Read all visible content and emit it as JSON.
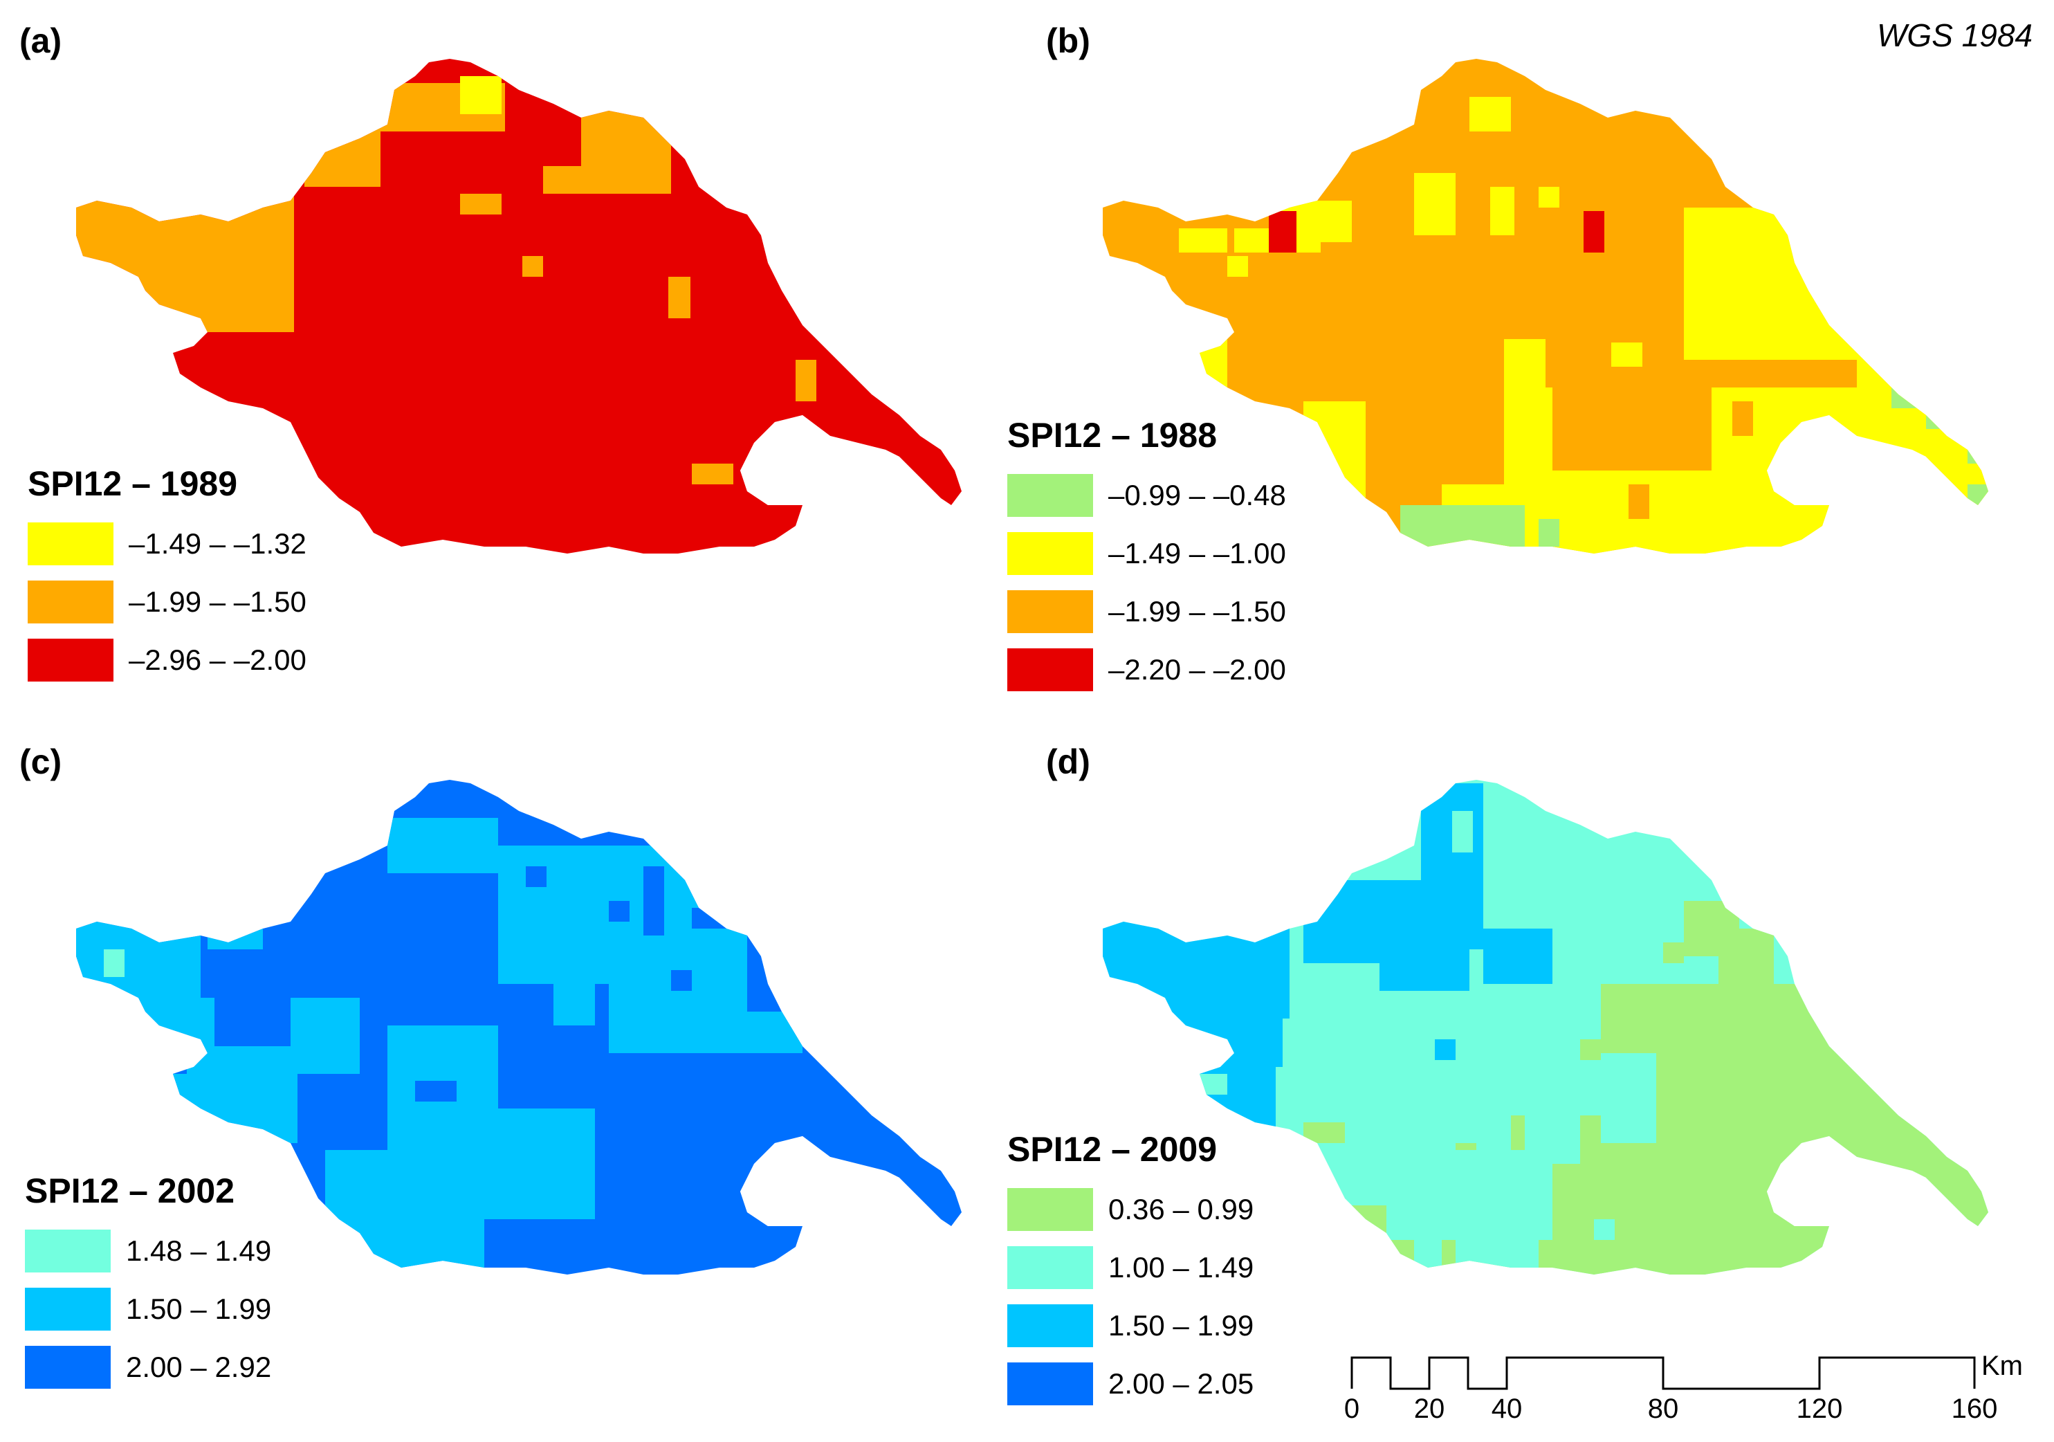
{
  "projection": "WGS 1984",
  "colors": {
    "red": "#e60000",
    "orange": "#ffaa00",
    "yellow": "#ffff00",
    "green": "#a3f27a",
    "aqua": "#73ffdf",
    "sky": "#00c5ff",
    "blue": "#0070ff"
  },
  "panels": [
    {
      "id": "a",
      "label": "(a)",
      "legend_title": "SPI12 – 1989",
      "classes": [
        {
          "label": "–1.49 – –1.32",
          "color": "#ffff00"
        },
        {
          "label": "–1.99 – –1.50",
          "color": "#ffaa00"
        },
        {
          "label": "–2.96 – –2.00",
          "color": "#e60000"
        }
      ],
      "base_color": "#e60000"
    },
    {
      "id": "b",
      "label": "(b)",
      "legend_title": "SPI12 – 1988",
      "classes": [
        {
          "label": "–0.99 – –0.48",
          "color": "#a3f27a"
        },
        {
          "label": "–1.49 – –1.00",
          "color": "#ffff00"
        },
        {
          "label": "–1.99 – –1.50",
          "color": "#ffaa00"
        },
        {
          "label": "–2.20 – –2.00",
          "color": "#e60000"
        }
      ],
      "base_color": "#ffaa00"
    },
    {
      "id": "c",
      "label": "(c)",
      "legend_title": "SPI12 – 2002",
      "classes": [
        {
          "label": "1.48 – 1.49",
          "color": "#73ffdf"
        },
        {
          "label": "1.50 – 1.99",
          "color": "#00c5ff"
        },
        {
          "label": "2.00 – 2.92",
          "color": "#0070ff"
        }
      ],
      "base_color": "#0070ff"
    },
    {
      "id": "d",
      "label": "(d)",
      "legend_title": "SPI12 – 2009",
      "classes": [
        {
          "label": "0.36 – 0.99",
          "color": "#a3f27a"
        },
        {
          "label": "1.00 – 1.49",
          "color": "#73ffdf"
        },
        {
          "label": "1.50 – 1.99",
          "color": "#00c5ff"
        },
        {
          "label": "2.00 – 2.05",
          "color": "#0070ff"
        }
      ],
      "base_color": "#73ffdf"
    }
  ],
  "scalebar": {
    "ticks": [
      "0",
      "20",
      "40",
      "80",
      "120",
      "160"
    ],
    "unit": "Km"
  }
}
